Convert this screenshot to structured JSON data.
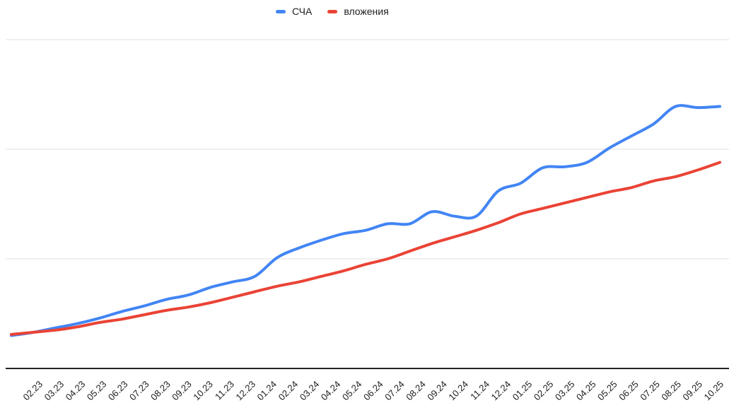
{
  "chart_data": {
    "type": "line",
    "smooth": true,
    "title": "",
    "xlabel": "",
    "ylabel": "",
    "legend_position": "top",
    "y_labels_visible": false,
    "ylim": [
      0,
      3
    ],
    "gridline_interval": 1,
    "categories": [
      "02.23",
      "03.23",
      "04.23",
      "05.23",
      "06.23",
      "07.23",
      "08.23",
      "09.23",
      "10.23",
      "11.23",
      "12.23",
      "01.24",
      "02.24",
      "03.24",
      "04.24",
      "05.24",
      "06.24",
      "07.24",
      "08.24",
      "09.24",
      "10.24",
      "11.24",
      "12.24",
      "01.25",
      "02.25",
      "03.25",
      "04.25",
      "05.25",
      "06.25",
      "07.25",
      "08.25",
      "09.25",
      "10.25"
    ],
    "series": [
      {
        "name": "СЧА",
        "color": "#4285f4",
        "values": [
          0.3,
          0.33,
          0.37,
          0.41,
          0.46,
          0.52,
          0.57,
          0.63,
          0.67,
          0.74,
          0.79,
          0.84,
          1.01,
          1.1,
          1.17,
          1.23,
          1.26,
          1.32,
          1.32,
          1.43,
          1.39,
          1.39,
          1.62,
          1.69,
          1.83,
          1.84,
          1.88,
          2.01,
          2.12,
          2.23,
          2.39,
          2.38,
          2.39
        ]
      },
      {
        "name": "вложения",
        "color": "#ea4335",
        "values": [
          0.31,
          0.33,
          0.35,
          0.38,
          0.42,
          0.45,
          0.49,
          0.53,
          0.56,
          0.6,
          0.65,
          0.7,
          0.75,
          0.79,
          0.84,
          0.89,
          0.95,
          1.0,
          1.07,
          1.14,
          1.2,
          1.26,
          1.33,
          1.41,
          1.46,
          1.51,
          1.56,
          1.61,
          1.65,
          1.71,
          1.75,
          1.81,
          1.88
        ]
      }
    ],
    "colors": {
      "gridline": "#e0e0e0",
      "axis_line": "#222222",
      "axis_label": "#1c1c1c"
    }
  }
}
